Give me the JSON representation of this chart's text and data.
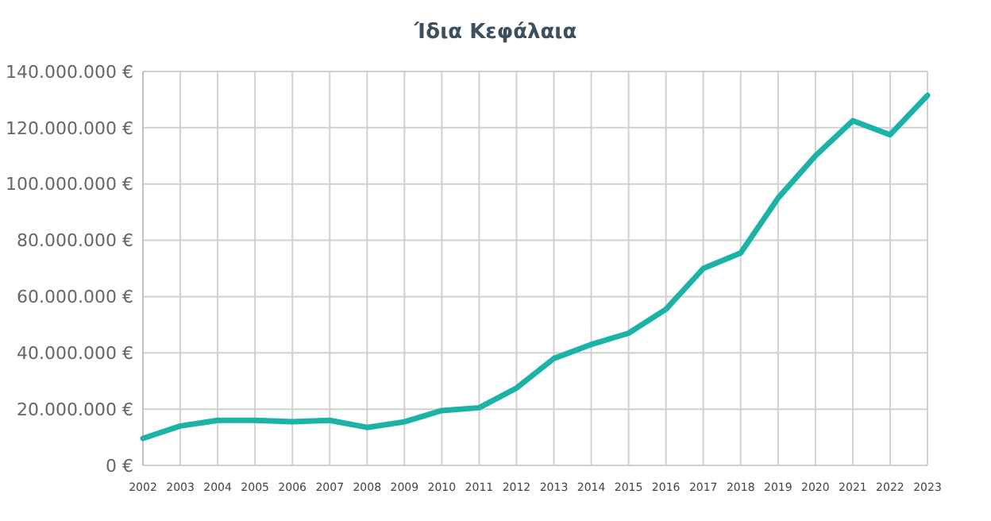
{
  "chart_data": {
    "type": "line",
    "title": "Ίδια Κεφάλαια",
    "categories": [
      "2002",
      "2003",
      "2004",
      "2005",
      "2006",
      "2007",
      "2008",
      "2009",
      "2010",
      "2011",
      "2012",
      "2013",
      "2014",
      "2015",
      "2016",
      "2017",
      "2018",
      "2019",
      "2020",
      "2021",
      "2022",
      "2023"
    ],
    "series": [
      {
        "color": "#1ab3a6",
        "values": [
          9600000,
          14000000,
          16000000,
          16000000,
          15500000,
          16000000,
          13500000,
          15500000,
          19500000,
          20500000,
          27500000,
          38000000,
          43000000,
          47000000,
          55500000,
          70000000,
          75500000,
          95000000,
          110000000,
          122500000,
          117500000,
          131500000
        ]
      }
    ],
    "ylim": [
      0,
      140000000
    ],
    "yticks": [
      {
        "value": 0,
        "label": "0 €"
      },
      {
        "value": 20000000,
        "label": "20.000.000 €"
      },
      {
        "value": 40000000,
        "label": "40.000.000 €"
      },
      {
        "value": 60000000,
        "label": "60.000.000 €"
      },
      {
        "value": 80000000,
        "label": "80.000.000 €"
      },
      {
        "value": 100000000,
        "label": "100.000.000 €"
      },
      {
        "value": 120000000,
        "label": "120.000.000 €"
      },
      {
        "value": 140000000,
        "label": "140.000.000 €"
      }
    ],
    "grid": true,
    "marker": "none",
    "line_style": "solid"
  }
}
